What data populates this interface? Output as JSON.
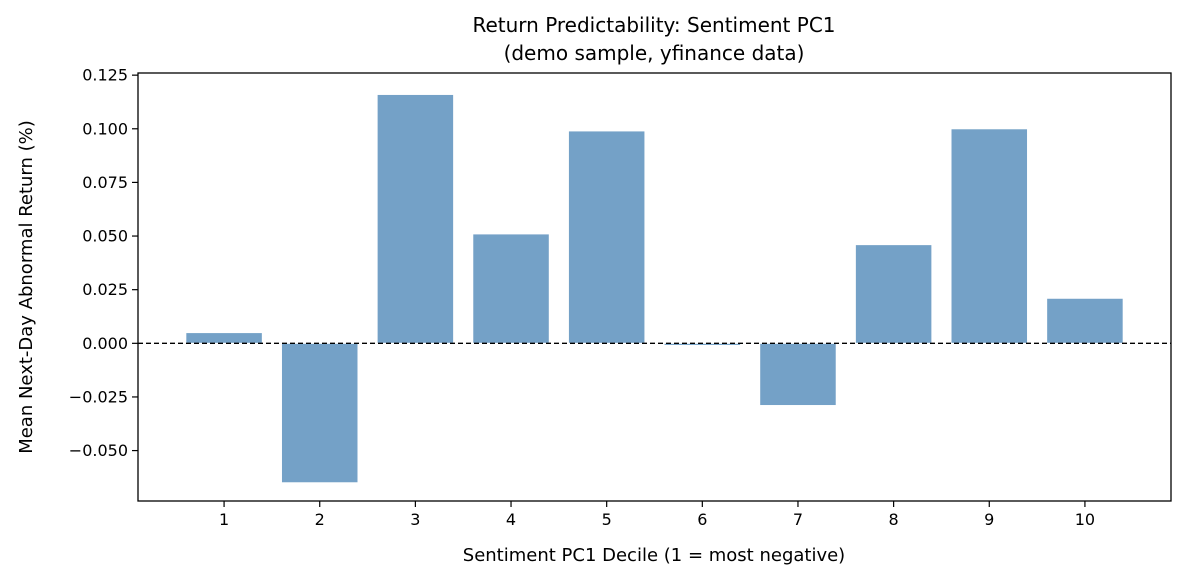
{
  "chart_data": {
    "type": "bar",
    "title_lines": [
      "Return Predictability: Sentiment PC1",
      "(demo sample, yfinance data)"
    ],
    "xlabel": "Sentiment PC1 Decile (1 = most negative)",
    "ylabel": "Mean Next-Day Abnormal Return (%)",
    "categories": [
      "1",
      "2",
      "3",
      "4",
      "5",
      "6",
      "7",
      "8",
      "9",
      "10"
    ],
    "values": [
      0.005,
      -0.065,
      0.116,
      0.051,
      0.099,
      -0.001,
      -0.029,
      0.046,
      0.1,
      0.021
    ],
    "xlim": [
      0.1,
      10.9
    ],
    "ylim": [
      -0.0735,
      0.126
    ],
    "y_ticks": [
      -0.05,
      -0.025,
      0.0,
      0.025,
      0.05,
      0.075,
      0.1,
      0.125
    ],
    "y_tick_labels": [
      "−0.050",
      "−0.025",
      "0.000",
      "0.025",
      "0.050",
      "0.075",
      "0.100",
      "0.125"
    ],
    "reference_line": {
      "y": 0,
      "style": "dashed"
    },
    "bar_color": "#74a1c7",
    "bar_edge_color": "#ffffff",
    "grid": false,
    "legend": "none"
  }
}
